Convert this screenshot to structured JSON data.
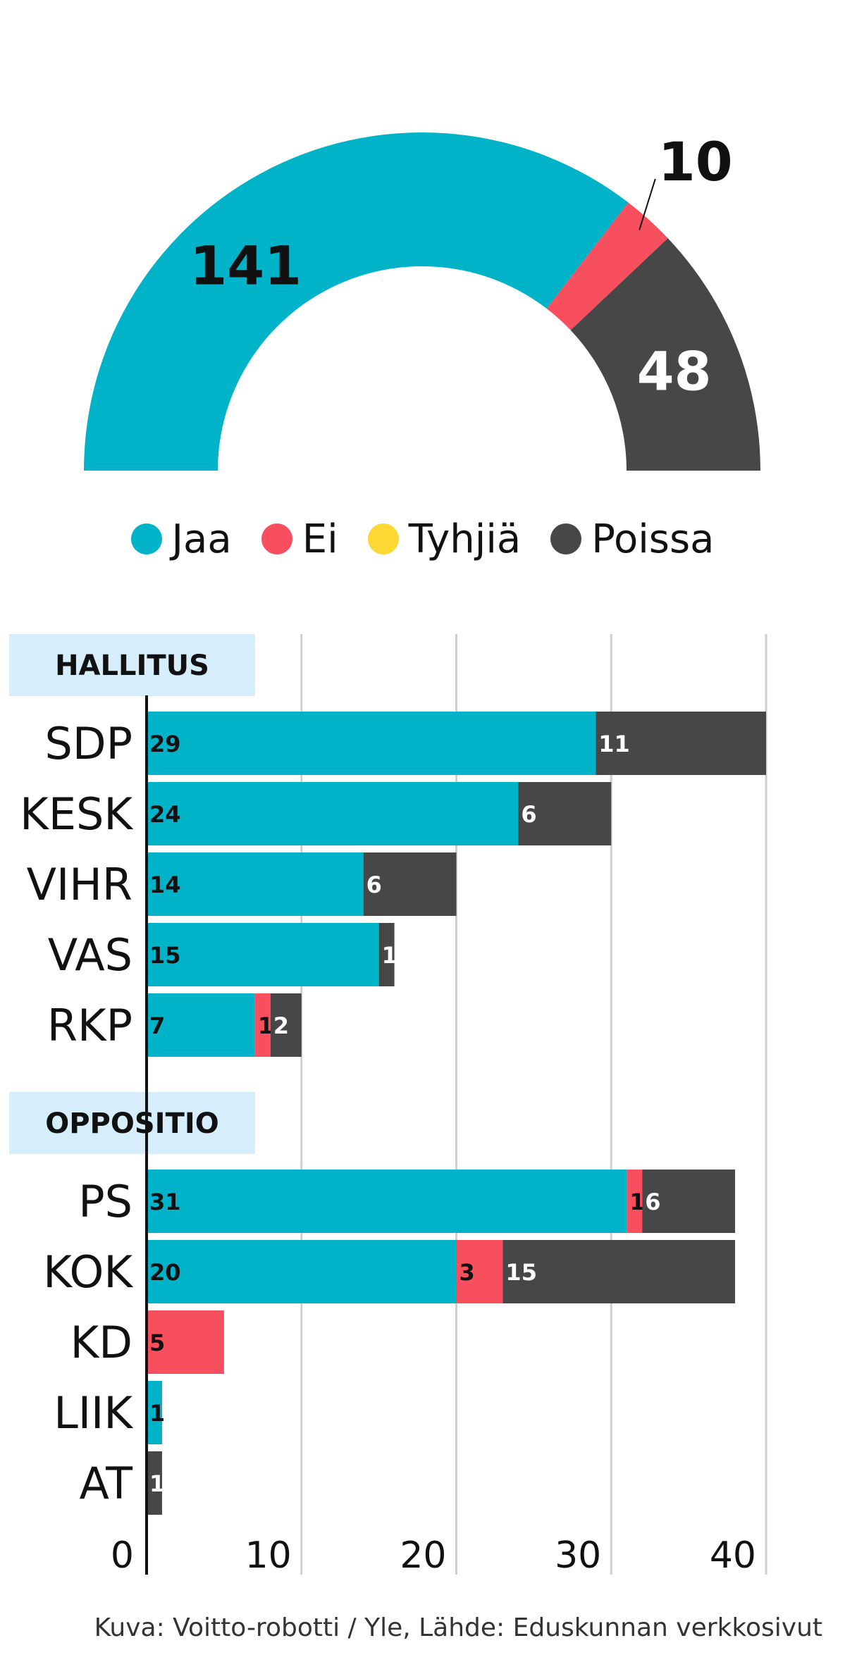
{
  "chart_data": [
    {
      "type": "pie",
      "subtype": "half-donut",
      "slices": [
        {
          "label": "Jaa",
          "value": 141,
          "color": "#00b3c9",
          "label_color": "#111111"
        },
        {
          "label": "Ei",
          "value": 10,
          "color": "#f84f5f",
          "label_color": "#111111"
        },
        {
          "label": "Tyhjiä",
          "value": 0,
          "color": "#fdd835"
        },
        {
          "label": "Poissa",
          "value": 48,
          "color": "#474747",
          "label_color": "#ffffff"
        }
      ]
    },
    {
      "type": "bar",
      "orientation": "horizontal",
      "stacked": true,
      "xlim": [
        0,
        40
      ],
      "x_ticks": [
        0,
        10,
        20,
        30,
        40
      ],
      "grid": true,
      "series_colors": {
        "Jaa": "#00b3c9",
        "Ei": "#f84f5f",
        "Tyhjiä": "#fdd835",
        "Poissa": "#474747"
      },
      "groups": [
        {
          "name": "HALLITUS",
          "parties": [
            {
              "name": "SDP",
              "Jaa": 29,
              "Ei": 0,
              "Tyhjiä": 0,
              "Poissa": 11
            },
            {
              "name": "KESK",
              "Jaa": 24,
              "Ei": 0,
              "Tyhjiä": 0,
              "Poissa": 6
            },
            {
              "name": "VIHR",
              "Jaa": 14,
              "Ei": 0,
              "Tyhjiä": 0,
              "Poissa": 6
            },
            {
              "name": "VAS",
              "Jaa": 15,
              "Ei": 0,
              "Tyhjiä": 0,
              "Poissa": 1
            },
            {
              "name": "RKP",
              "Jaa": 7,
              "Ei": 1,
              "Tyhjiä": 0,
              "Poissa": 2
            }
          ]
        },
        {
          "name": "OPPOSITIO",
          "parties": [
            {
              "name": "PS",
              "Jaa": 31,
              "Ei": 1,
              "Tyhjiä": 0,
              "Poissa": 6
            },
            {
              "name": "KOK",
              "Jaa": 20,
              "Ei": 3,
              "Tyhjiä": 0,
              "Poissa": 15
            },
            {
              "name": "KD",
              "Jaa": 0,
              "Ei": 5,
              "Tyhjiä": 0,
              "Poissa": 0
            },
            {
              "name": "LIIK",
              "Jaa": 1,
              "Ei": 0,
              "Tyhjiä": 0,
              "Poissa": 0
            },
            {
              "name": "AT",
              "Jaa": 0,
              "Ei": 0,
              "Tyhjiä": 0,
              "Poissa": 1
            }
          ]
        }
      ]
    }
  ],
  "legend": [
    {
      "label": "Jaa",
      "color": "#00b3c9"
    },
    {
      "label": "Ei",
      "color": "#f84f5f"
    },
    {
      "label": "Tyhjiä",
      "color": "#fdd835"
    },
    {
      "label": "Poissa",
      "color": "#474747"
    }
  ],
  "group_header_color": "#d6eefb",
  "source": "Kuva: Voitto-robotti / Yle, Lähde: Eduskunnan verkkosivut"
}
